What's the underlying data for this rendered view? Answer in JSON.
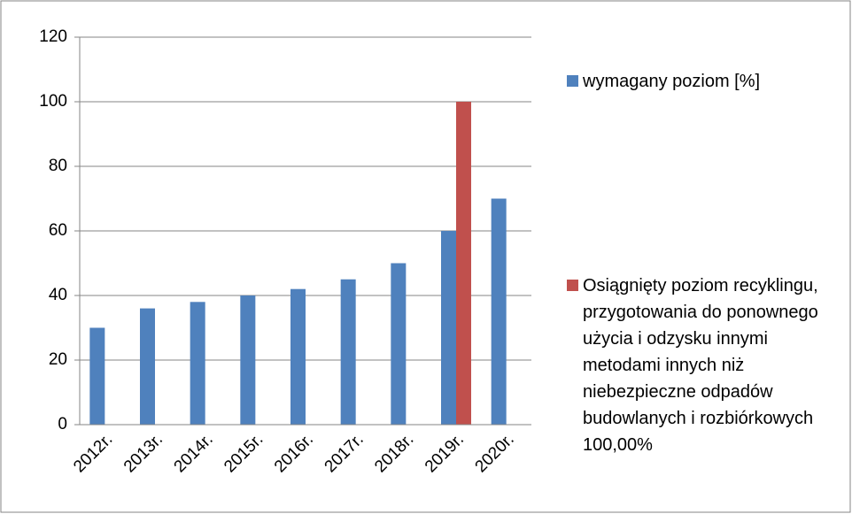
{
  "chart_data": {
    "type": "bar",
    "categories": [
      "2012r.",
      "2013r.",
      "2014r.",
      "2015r.",
      "2016r.",
      "2017r.",
      "2018r.",
      "2019r.",
      "2020r."
    ],
    "series": [
      {
        "name": "wymagany poziom [%]",
        "color": "#4f81bd",
        "values": [
          30,
          36,
          38,
          40,
          42,
          45,
          50,
          60,
          70
        ]
      },
      {
        "name": "Osiągnięty poziom recyklingu, przygotowania do ponownego użycia i odzysku innymi metodami innych niż niebezpieczne odpadów budowlanych i rozbiórkowych 100,00%",
        "color": "#c0504d",
        "values": [
          null,
          null,
          null,
          null,
          null,
          null,
          null,
          100,
          null
        ]
      }
    ],
    "ylim": [
      0,
      120
    ],
    "yticks": [
      0,
      20,
      40,
      60,
      80,
      100,
      120
    ],
    "grid": true,
    "legend": "right"
  }
}
